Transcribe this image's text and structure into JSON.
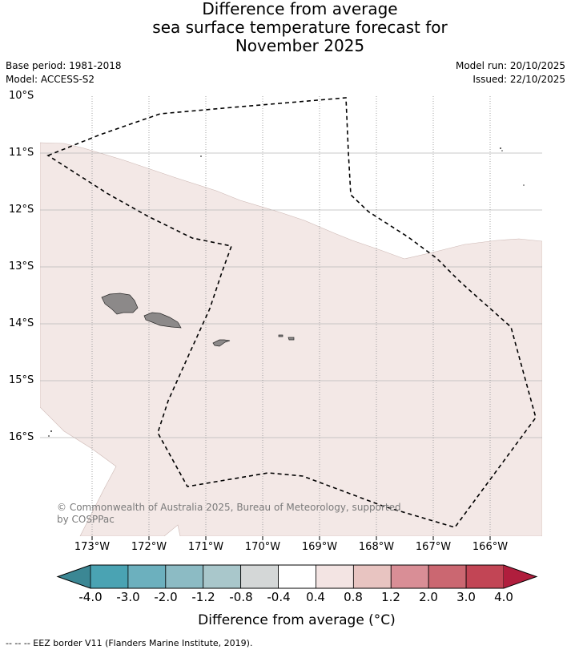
{
  "title": {
    "line1": "Difference from average",
    "line2": "sea surface temperature forecast for",
    "line3": "November 2025"
  },
  "meta": {
    "base_period": "Base period: 1981-2018",
    "model": "Model: ACCESS-S2",
    "model_run": "Model run: 20/10/2025",
    "issued": "Issued: 22/10/2025"
  },
  "map": {
    "lat_labels": [
      "10°S",
      "11°S",
      "12°S",
      "13°S",
      "14°S",
      "15°S",
      "16°S"
    ],
    "lon_labels": [
      "173°W",
      "172°W",
      "171°W",
      "170°W",
      "169°W",
      "168°W",
      "167°W",
      "166°W"
    ],
    "copyright_line1": "© Commonwealth of Australia 2025, Bureau of Meteorology, supported",
    "copyright_line2": "by COSPPac",
    "anomaly_fill_color": "#f3e8e6",
    "land_color": "#8c8989",
    "features": [
      "Savai'i",
      "Upolu",
      "Tutuila",
      "Manu'a Islands",
      "EEZ boundary (dashed)"
    ]
  },
  "colorbar": {
    "labels": [
      "-4.0",
      "-3.0",
      "-2.0",
      "-1.2",
      "-0.8",
      "-0.4",
      "0.4",
      "0.8",
      "1.2",
      "2.0",
      "3.0",
      "4.0"
    ],
    "colors": [
      "#4aa3b3",
      "#6cb0be",
      "#8cbbc4",
      "#a9c7cb",
      "#d4d7d7",
      "#ffffff",
      "#f3e4e3",
      "#e8c4c1",
      "#d98e96",
      "#cb6771",
      "#c24555"
    ],
    "under_color": "#3b8794",
    "over_color": "#b01e3d",
    "title": "Difference from average (°C)"
  },
  "legend": {
    "eez_note": "--  --  -- EEZ border V11 (Flanders Marine Institute, 2019)."
  }
}
